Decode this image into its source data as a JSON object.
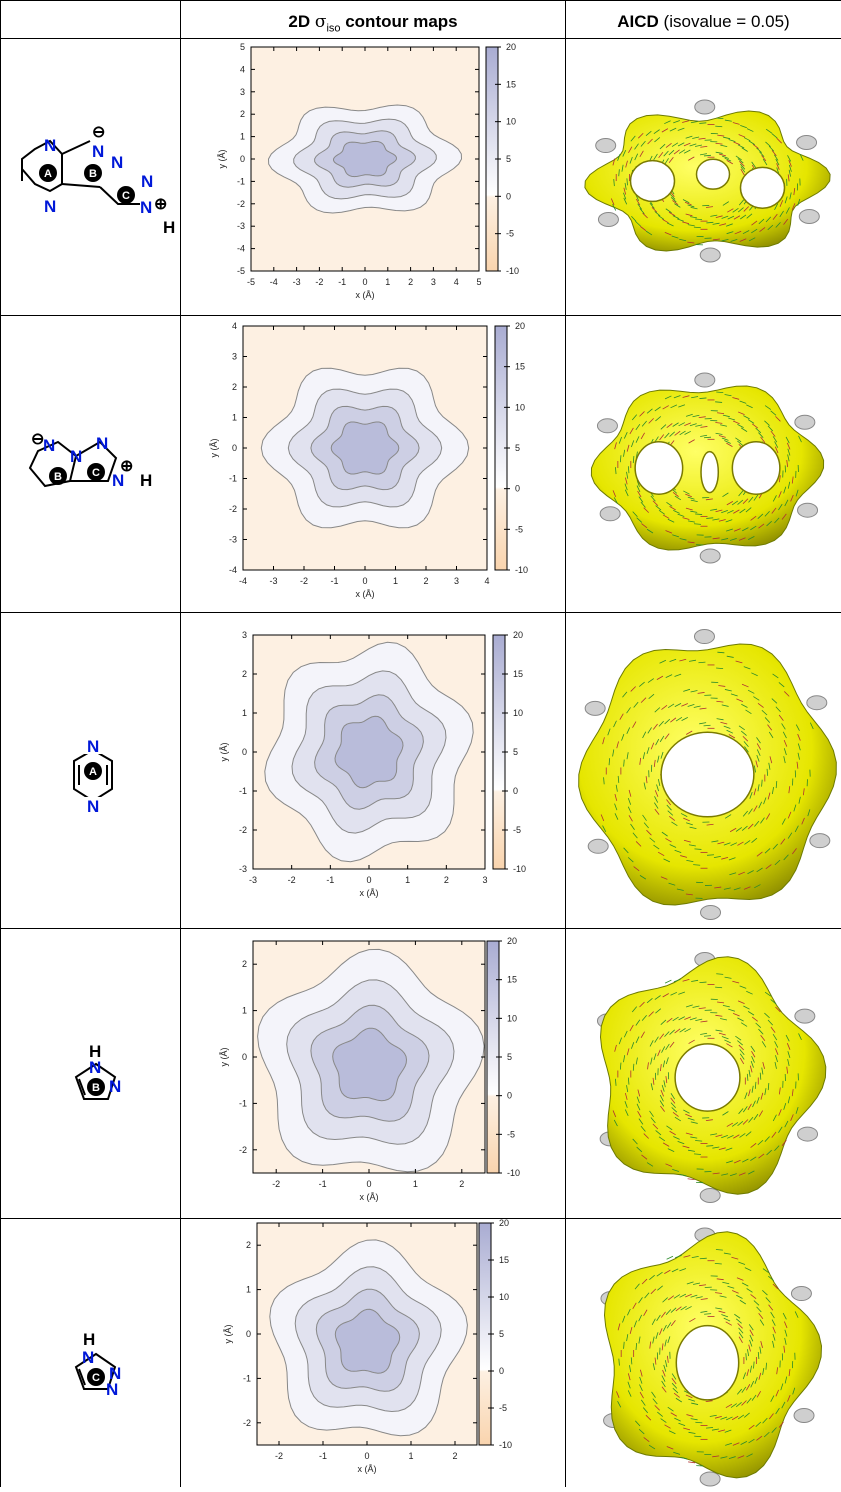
{
  "header": {
    "col1": "",
    "col2_pre": "2D ",
    "col2_sigma": "σ",
    "col2_sub": "iso",
    "col2_post": " contour maps",
    "col3_bold": "AICD",
    "col3_rest": " (isovalue = 0.05)"
  },
  "colorbar": {
    "ticks": [
      "20",
      "15",
      "10",
      "5",
      "0",
      "-5",
      "-10"
    ]
  },
  "axis": {
    "xlabel": "x (Å)",
    "ylabel": "y (Å)"
  },
  "rows": [
    {
      "molecule": {
        "rings": [
          "A",
          "B",
          "C"
        ],
        "atoms": [
          "N",
          "N",
          "N",
          "N",
          "N",
          "N",
          "H"
        ],
        "charges": [
          "⊖",
          "⊕"
        ]
      },
      "range": 5,
      "ticks": [
        "5",
        "4",
        "3",
        "2",
        "1",
        "0",
        "-1",
        "-2",
        "-3",
        "-4",
        "-5"
      ],
      "xticks": [
        "-5",
        "-4",
        "-3",
        "-2",
        "-1",
        "0",
        "1",
        "2",
        "3",
        "4",
        "5"
      ]
    },
    {
      "molecule": {
        "rings": [
          "B",
          "C"
        ],
        "atoms": [
          "N",
          "N",
          "N",
          "N",
          "H"
        ],
        "charges": [
          "⊖",
          "⊕"
        ]
      },
      "range": 4,
      "ticks": [
        "4",
        "3",
        "2",
        "1",
        "0",
        "-1",
        "-2",
        "-3",
        "-4"
      ],
      "xticks": [
        "-4",
        "-3",
        "-2",
        "-1",
        "0",
        "1",
        "2",
        "3",
        "4"
      ]
    },
    {
      "molecule": {
        "rings": [
          "A"
        ],
        "atoms": [
          "N",
          "N"
        ],
        "charges": []
      },
      "range": 3,
      "ticks": [
        "3",
        "2",
        "1",
        "0",
        "-1",
        "-2",
        "-3"
      ],
      "xticks": [
        "-3",
        "-2",
        "-1",
        "0",
        "1",
        "2",
        "3"
      ]
    },
    {
      "molecule": {
        "rings": [
          "B"
        ],
        "atoms": [
          "H",
          "N",
          "N"
        ],
        "charges": []
      },
      "range": 2.5,
      "ticks": [
        "2",
        "1",
        "0",
        "-1",
        "-2"
      ],
      "xticks": [
        "-2",
        "-1",
        "0",
        "1",
        "2"
      ]
    },
    {
      "molecule": {
        "rings": [
          "C"
        ],
        "atoms": [
          "H",
          "N",
          "N",
          "N"
        ],
        "charges": []
      },
      "range": 2.5,
      "ticks": [
        "2",
        "1",
        "0",
        "-1",
        "-2"
      ],
      "xticks": [
        "-2",
        "-1",
        "0",
        "1",
        "2"
      ]
    }
  ]
}
